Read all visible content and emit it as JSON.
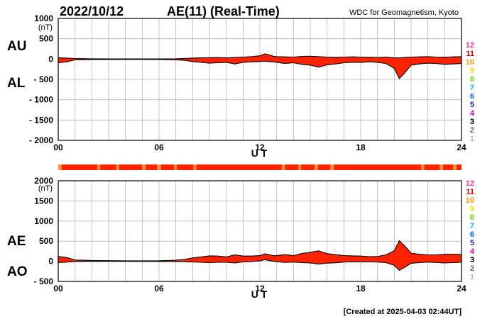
{
  "header": {
    "date": "2022/10/12",
    "title": "AE(11) (Real-Time)",
    "source": "WDC for Geomagnetism, Kyoto"
  },
  "footer": {
    "created": "[Created at 2025-04-03 02:44UT]"
  },
  "station_counts": {
    "labels": [
      "12",
      "11",
      "10",
      "9",
      "8",
      "7",
      "6",
      "5",
      "4",
      "3",
      "2",
      "1"
    ],
    "colors": [
      "#ff3399",
      "#dd0000",
      "#ff9900",
      "#e6e600",
      "#66dd00",
      "#00cccc",
      "#0066ff",
      "#2222aa",
      "#cc00cc",
      "#000000",
      "#666666",
      "#bbbbbb"
    ]
  },
  "colors": {
    "fill_main": "#ff2200",
    "fill_alt": "#ff9933",
    "line": "#000000",
    "grid": "#b4b4b4"
  },
  "chart_data": [
    {
      "type": "area",
      "name": "AU/AL",
      "ylabels": [
        "AU",
        "AL"
      ],
      "unit": "(nT)",
      "xlabel": "U T",
      "xlim": [
        0,
        24
      ],
      "xticks": [
        0,
        6,
        12,
        18,
        24
      ],
      "xtick_labels": [
        "00",
        "06",
        "12",
        "18",
        "24"
      ],
      "ylim": [
        -2000,
        1000
      ],
      "yticks": [
        1000,
        500,
        0,
        -500,
        -1000,
        -1500,
        -2000
      ],
      "ytick_labels": [
        "1000",
        "500",
        "0",
        "- 500",
        "- 1000",
        "- 1500",
        "- 2000"
      ],
      "grid": true,
      "series": [
        {
          "name": "AU",
          "x": [
            0,
            0.5,
            1,
            2,
            3,
            4,
            5,
            6,
            7,
            7.5,
            8,
            8.5,
            9,
            9.5,
            10,
            10.5,
            11,
            11.5,
            12,
            12.3,
            12.5,
            12.8,
            13,
            13.5,
            14,
            14.5,
            15,
            15.5,
            16,
            16.5,
            17,
            17.5,
            18,
            18.5,
            19,
            19.5,
            20,
            20.3,
            20.6,
            21,
            21.5,
            22,
            22.5,
            23,
            23.5,
            24
          ],
          "y": [
            30,
            25,
            12,
            8,
            6,
            5,
            5,
            4,
            8,
            15,
            25,
            30,
            35,
            40,
            30,
            40,
            50,
            60,
            80,
            130,
            110,
            70,
            60,
            55,
            50,
            65,
            70,
            60,
            50,
            45,
            50,
            55,
            50,
            45,
            40,
            50,
            30,
            30,
            40,
            50,
            55,
            60,
            50,
            45,
            55,
            60
          ]
        },
        {
          "name": "AL",
          "x": [
            0,
            0.5,
            1,
            2,
            3,
            4,
            5,
            6,
            7,
            7.5,
            8,
            8.5,
            9,
            9.5,
            10,
            10.5,
            11,
            11.5,
            12,
            12.3,
            12.5,
            12.8,
            13,
            13.5,
            14,
            14.5,
            15,
            15.5,
            16,
            16.5,
            17,
            17.5,
            18,
            18.5,
            19,
            19.5,
            20,
            20.3,
            20.6,
            21,
            21.5,
            22,
            22.5,
            23,
            23.5,
            24
          ],
          "y": [
            -90,
            -70,
            -20,
            -12,
            -10,
            -8,
            -8,
            -10,
            -20,
            -30,
            -60,
            -80,
            -100,
            -90,
            -80,
            -120,
            -80,
            -70,
            -60,
            -55,
            -60,
            -70,
            -80,
            -110,
            -90,
            -130,
            -150,
            -200,
            -140,
            -120,
            -90,
            -80,
            -80,
            -70,
            -80,
            -110,
            -230,
            -480,
            -350,
            -150,
            -120,
            -100,
            -110,
            -130,
            -120,
            -110
          ]
        }
      ]
    },
    {
      "type": "area",
      "name": "AE/AO",
      "ylabels": [
        "AE",
        "AO"
      ],
      "unit": "(nT)",
      "xlabel": "U T",
      "xlim": [
        0,
        24
      ],
      "xticks": [
        0,
        6,
        12,
        18,
        24
      ],
      "xtick_labels": [
        "00",
        "06",
        "12",
        "18",
        "24"
      ],
      "ylim": [
        -500,
        2000
      ],
      "yticks": [
        2000,
        1500,
        1000,
        500,
        0,
        -500
      ],
      "ytick_labels": [
        "2000",
        "1500",
        "1000",
        "500",
        "0",
        "- 500"
      ],
      "grid": true,
      "series": [
        {
          "name": "AE",
          "x": [
            0,
            0.5,
            1,
            2,
            3,
            4,
            5,
            6,
            7,
            7.5,
            8,
            8.5,
            9,
            9.5,
            10,
            10.5,
            11,
            11.5,
            12,
            12.3,
            12.5,
            12.8,
            13,
            13.5,
            14,
            14.5,
            15,
            15.5,
            16,
            16.5,
            17,
            17.5,
            18,
            18.5,
            19,
            19.5,
            20,
            20.3,
            20.6,
            21,
            21.5,
            22,
            22.5,
            23,
            23.5,
            24
          ],
          "y": [
            120,
            95,
            32,
            20,
            16,
            13,
            13,
            14,
            28,
            45,
            85,
            110,
            135,
            130,
            110,
            160,
            130,
            130,
            140,
            185,
            170,
            140,
            140,
            165,
            140,
            195,
            220,
            260,
            190,
            165,
            140,
            135,
            130,
            115,
            120,
            160,
            260,
            510,
            390,
            200,
            175,
            160,
            160,
            175,
            175,
            170
          ]
        },
        {
          "name": "AO",
          "x": [
            0,
            0.5,
            1,
            2,
            3,
            4,
            5,
            6,
            7,
            7.5,
            8,
            8.5,
            9,
            9.5,
            10,
            10.5,
            11,
            11.5,
            12,
            12.3,
            12.5,
            12.8,
            13,
            13.5,
            14,
            14.5,
            15,
            15.5,
            16,
            16.5,
            17,
            17.5,
            18,
            18.5,
            19,
            19.5,
            20,
            20.3,
            20.6,
            21,
            21.5,
            22,
            22.5,
            23,
            23.5,
            24
          ],
          "y": [
            -30,
            -22,
            -4,
            -2,
            -2,
            -1,
            -1,
            -3,
            -6,
            -8,
            -18,
            -25,
            -32,
            -25,
            -25,
            -40,
            -15,
            -5,
            10,
            38,
            25,
            0,
            -10,
            -28,
            -20,
            -32,
            -40,
            -70,
            -45,
            -37,
            -20,
            -12,
            -15,
            -12,
            -20,
            -30,
            -100,
            -225,
            -155,
            -50,
            -32,
            -20,
            -30,
            -42,
            -32,
            -25
          ]
        }
      ]
    }
  ],
  "station_bar": {
    "x_start": [
      0,
      2.33,
      3.45,
      5.0,
      5.88,
      6.9,
      8.05,
      13.3,
      14.3,
      15.25,
      16.2,
      21.6,
      22.7,
      23.5
    ],
    "x_end": [
      0.2,
      2.5,
      3.62,
      5.2,
      6.12,
      7.05,
      8.22,
      13.5,
      14.45,
      15.45,
      16.4,
      21.78,
      22.9,
      23.7
    ]
  }
}
